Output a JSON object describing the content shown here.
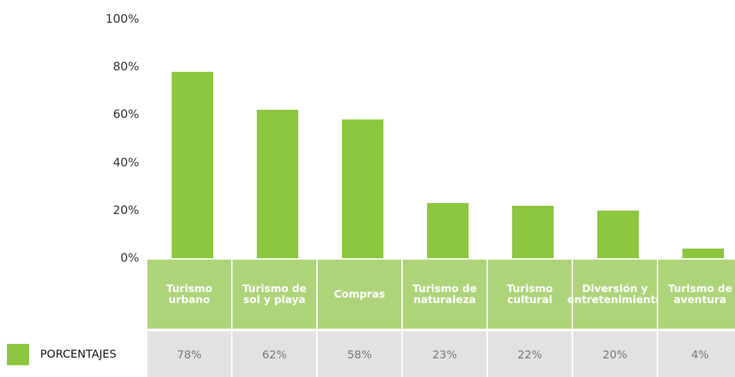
{
  "chart_data": {
    "type": "bar",
    "categories": [
      "Turismo urbano",
      "Turismo de sol y playa",
      "Compras",
      "Turismo de naturaleza",
      "Turismo cultural",
      "Diversión y entretenimiento",
      "Turismo de aventura"
    ],
    "series": [
      {
        "name": "PORCENTAJES",
        "color": "#8dc63f",
        "values": [
          78,
          62,
          58,
          23,
          22,
          20,
          4
        ],
        "value_labels": [
          "78%",
          "62%",
          "58%",
          "23%",
          "22%",
          "20%",
          "4%"
        ]
      }
    ],
    "ylim": [
      0,
      100
    ],
    "yticks": [
      {
        "value": 0,
        "label": "0%"
      },
      {
        "value": 20,
        "label": "20%"
      },
      {
        "value": 40,
        "label": "40%"
      },
      {
        "value": 60,
        "label": "60%"
      },
      {
        "value": 80,
        "label": "80%"
      },
      {
        "value": 100,
        "label": "100%"
      }
    ],
    "legend": "bottom-left"
  }
}
